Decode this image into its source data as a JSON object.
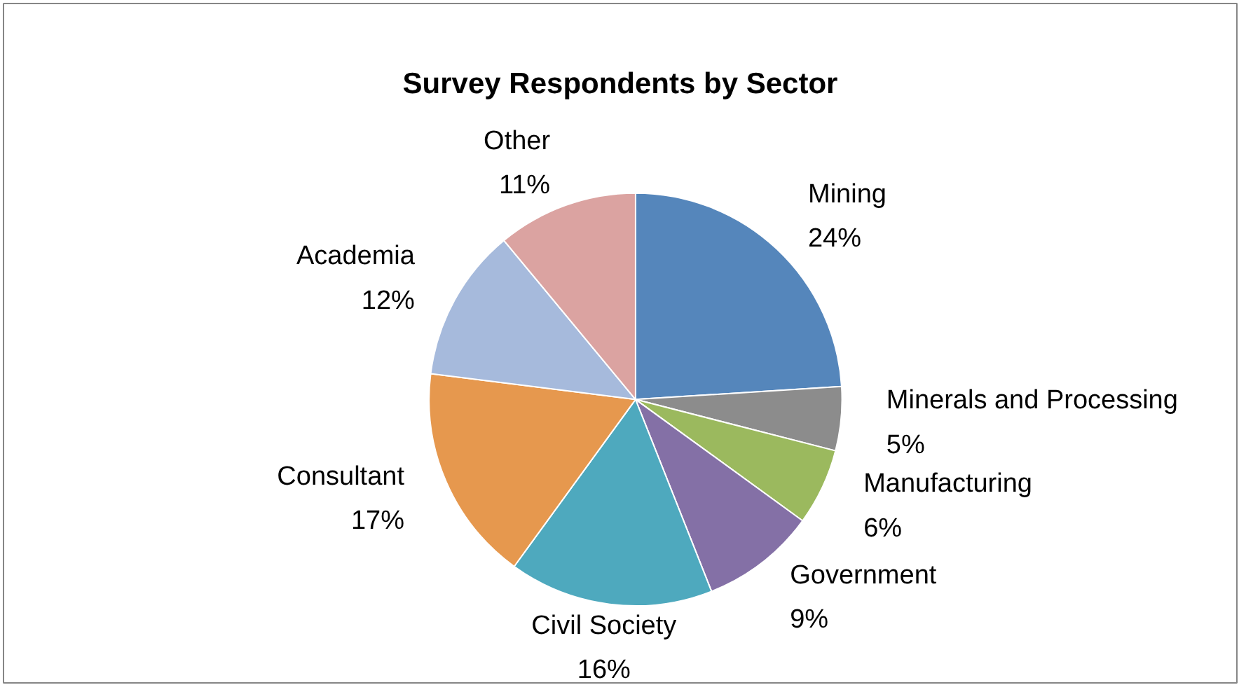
{
  "chart_data": {
    "type": "pie",
    "title": "Survey Respondents by Sector",
    "categories": [
      "Mining",
      "Minerals and Processing",
      "Manufacturing",
      "Government",
      "Civil Society",
      "Consultant",
      "Academia",
      "Other"
    ],
    "values": [
      24,
      5,
      6,
      9,
      16,
      17,
      12,
      11
    ],
    "value_labels": [
      "24%",
      "5%",
      "6%",
      "9%",
      "16%",
      "17%",
      "12%",
      "11%"
    ],
    "colors": [
      "#5586bb",
      "#8c8c8c",
      "#9bb95e",
      "#8470a6",
      "#4ea9be",
      "#e6984e",
      "#a6badc",
      "#dba3a1"
    ],
    "data_labels": true
  }
}
